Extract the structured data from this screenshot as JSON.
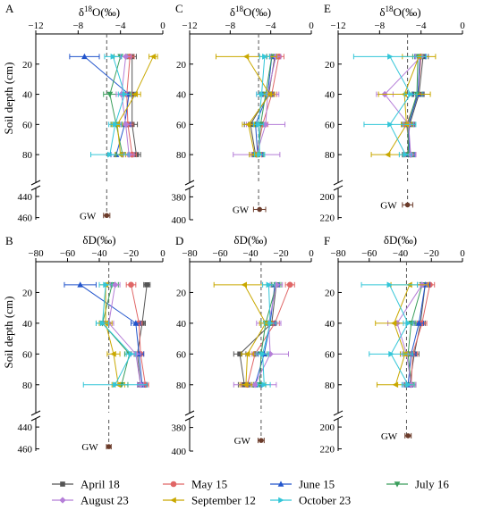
{
  "y_axis_label": "Soil depth (cm)",
  "gw_label": "GW",
  "series_meta": [
    {
      "name": "April 18",
      "color": "#555555",
      "marker": "square"
    },
    {
      "name": "May 15",
      "color": "#e06666",
      "marker": "circle"
    },
    {
      "name": "June 15",
      "color": "#2255cc",
      "marker": "triangle-up"
    },
    {
      "name": "July 16",
      "color": "#3a9e5c",
      "marker": "triangle-down"
    },
    {
      "name": "August 23",
      "color": "#b57ed8",
      "marker": "diamond"
    },
    {
      "name": "September 12",
      "color": "#c9a800",
      "marker": "triangle-left"
    },
    {
      "name": "October 23",
      "color": "#33c6d8",
      "marker": "triangle-right"
    }
  ],
  "chart_data": [
    {
      "type": "line",
      "panel": "A",
      "isotope": "d18O",
      "xlabel_main": "δ",
      "xlabel_sup": "18",
      "xlabel_rest": "O(‰)",
      "xlim": [
        -12,
        0
      ],
      "xticks": [
        "−12",
        "−8",
        "−4",
        "0"
      ],
      "xtick_values": [
        -12,
        -8,
        -4,
        0
      ],
      "depths": [
        15,
        40,
        60,
        80
      ],
      "ylim_upper": [
        0,
        90
      ],
      "yticks_upper": [
        20,
        40,
        60,
        80
      ],
      "ylim_lower": [
        435,
        462
      ],
      "yticks_lower": [
        440,
        460
      ],
      "gw_ref": -5.3,
      "gw": {
        "depth": 458,
        "value": -5.3,
        "err": 0.3
      },
      "series": [
        {
          "values": [
            -2.9,
            -2.9,
            -2.9,
            -2.5
          ],
          "err": [
            0.4,
            0.5,
            0.5,
            0.4
          ]
        },
        {
          "values": [
            -3.1,
            -3.4,
            -3.3,
            -2.9
          ],
          "err": [
            0.4,
            0.5,
            0.5,
            0.4
          ]
        },
        {
          "values": [
            -7.4,
            -3.2,
            -3.6,
            -4.4
          ],
          "err": [
            1.4,
            0.6,
            0.5,
            0.5
          ]
        },
        {
          "values": [
            -4.0,
            -5.0,
            -4.4,
            -3.8
          ],
          "err": [
            0.6,
            0.6,
            0.5,
            0.6
          ]
        },
        {
          "values": [
            -3.5,
            -3.9,
            -3.5,
            -3.2
          ],
          "err": [
            0.5,
            0.5,
            0.5,
            0.5
          ]
        },
        {
          "values": [
            -0.9,
            -2.6,
            -4.3,
            -4.0
          ],
          "err": [
            0.4,
            0.5,
            0.5,
            0.5
          ]
        },
        {
          "values": [
            -4.7,
            -3.6,
            -4.5,
            -5.0
          ],
          "err": [
            0.8,
            0.6,
            0.6,
            1.8
          ]
        }
      ]
    },
    {
      "type": "line",
      "panel": "C",
      "isotope": "d18O",
      "xlabel_main": "δ",
      "xlabel_sup": "18",
      "xlabel_rest": "O(‰)",
      "xlim": [
        -12,
        0
      ],
      "xticks": [
        "−12",
        "−8",
        "−4",
        "0"
      ],
      "xtick_values": [
        -12,
        -8,
        -4,
        0
      ],
      "depths": [
        15,
        40,
        60,
        80
      ],
      "ylim_upper": [
        0,
        90
      ],
      "yticks_upper": [
        20,
        40,
        60,
        80
      ],
      "ylim_lower": [
        375,
        400
      ],
      "yticks_lower": [
        380,
        400
      ],
      "gw_ref": -5.2,
      "gw": {
        "depth": 391,
        "value": -5.1,
        "err": 0.6
      },
      "series": [
        {
          "values": [
            -3.6,
            -4.2,
            -6.0,
            -5.5
          ],
          "err": [
            0.5,
            0.5,
            0.6,
            0.6
          ]
        },
        {
          "values": [
            -3.2,
            -3.9,
            -4.8,
            -5.4
          ],
          "err": [
            0.5,
            0.5,
            0.5,
            0.5
          ]
        },
        {
          "values": [
            -3.9,
            -4.3,
            -5.5,
            -5.3
          ],
          "err": [
            0.5,
            0.5,
            0.5,
            0.5
          ]
        },
        {
          "values": [
            -3.9,
            -4.5,
            -5.0,
            -5.2
          ],
          "err": [
            0.5,
            0.5,
            0.5,
            0.5
          ]
        },
        {
          "values": [
            -3.5,
            -4.3,
            -4.5,
            -5.4
          ],
          "err": [
            0.5,
            1.1,
            1.9,
            2.3
          ]
        },
        {
          "values": [
            -6.4,
            -4.1,
            -6.2,
            -5.6
          ],
          "err": [
            3.0,
            0.5,
            0.6,
            0.5
          ]
        },
        {
          "values": [
            -4.6,
            -4.9,
            -5.2,
            -5.1
          ],
          "err": [
            0.5,
            0.5,
            0.5,
            0.5
          ]
        }
      ]
    },
    {
      "type": "line",
      "panel": "E",
      "isotope": "d18O",
      "xlabel_main": "δ",
      "xlabel_sup": "18",
      "xlabel_rest": "O(‰)",
      "xlim": [
        -12,
        0
      ],
      "xticks": [
        "−12",
        "−8",
        "−4",
        "0"
      ],
      "xtick_values": [
        -12,
        -8,
        -4,
        0
      ],
      "depths": [
        15,
        40,
        60,
        80
      ],
      "ylim_upper": [
        0,
        90
      ],
      "yticks_upper": [
        20,
        40,
        60,
        80
      ],
      "ylim_lower": [
        195,
        222
      ],
      "yticks_lower": [
        200,
        220
      ],
      "gw_ref": -5.3,
      "gw": {
        "depth": 208,
        "value": -5.3,
        "err": 0.5
      },
      "series": [
        {
          "values": [
            -3.8,
            -4.2,
            -5.1,
            -5.3
          ],
          "err": [
            0.5,
            0.5,
            0.5,
            0.5
          ]
        },
        {
          "values": [
            -4.0,
            -4.3,
            -5.4,
            -5.0
          ],
          "err": [
            0.5,
            0.5,
            0.5,
            0.5
          ]
        },
        {
          "values": [
            -4.1,
            -4.3,
            -5.2,
            -5.1
          ],
          "err": [
            0.5,
            0.5,
            0.5,
            0.5
          ]
        },
        {
          "values": [
            -4.3,
            -4.4,
            -5.3,
            -5.2
          ],
          "err": [
            0.5,
            0.5,
            0.5,
            0.5
          ]
        },
        {
          "values": [
            -4.0,
            -7.5,
            -5.2,
            -5.0
          ],
          "err": [
            0.5,
            0.8,
            0.5,
            0.5
          ]
        },
        {
          "values": [
            -4.2,
            -5.6,
            -5.4,
            -7.2
          ],
          "err": [
            1.6,
            2.5,
            0.5,
            1.6
          ]
        },
        {
          "values": [
            -7.0,
            -5.0,
            -7.0,
            -5.5
          ],
          "err": [
            3.5,
            0.6,
            2.5,
            0.6
          ]
        }
      ]
    },
    {
      "type": "line",
      "panel": "B",
      "isotope": "dD",
      "xlabel_main": "δD(‰)",
      "xlabel_sup": "",
      "xlabel_rest": "",
      "xlim": [
        -80,
        0
      ],
      "xticks": [
        "−80",
        "−60",
        "−40",
        "−20",
        "0"
      ],
      "xtick_values": [
        -80,
        -60,
        -40,
        -20,
        0
      ],
      "depths": [
        15,
        40,
        60,
        80
      ],
      "ylim_upper": [
        0,
        90
      ],
      "yticks_upper": [
        20,
        40,
        60,
        80
      ],
      "ylim_lower": [
        435,
        462
      ],
      "yticks_lower": [
        440,
        460
      ],
      "gw_ref": -34,
      "gw": {
        "depth": 458,
        "value": -34,
        "err": 1.5
      },
      "series": [
        {
          "values": [
            -10,
            -13,
            -16,
            -14
          ],
          "err": [
            2,
            2,
            2,
            2
          ]
        },
        {
          "values": [
            -20,
            -15,
            -14,
            -11
          ],
          "err": [
            3,
            2,
            2,
            2
          ]
        },
        {
          "values": [
            -52,
            -17,
            -15,
            -13
          ],
          "err": [
            10,
            3,
            3,
            3
          ]
        },
        {
          "values": [
            -32,
            -38,
            -21,
            -26
          ],
          "err": [
            4,
            4,
            3,
            4
          ]
        },
        {
          "values": [
            -30,
            -34,
            -17,
            -14
          ],
          "err": [
            3,
            3,
            3,
            2
          ]
        },
        {
          "values": [
            -36,
            -36,
            -31,
            -28
          ],
          "err": [
            4,
            4,
            4,
            4
          ]
        },
        {
          "values": [
            -36,
            -38,
            -20,
            -30
          ],
          "err": [
            4,
            4,
            3,
            20
          ]
        }
      ]
    },
    {
      "type": "line",
      "panel": "D",
      "isotope": "dD",
      "xlabel_main": "δD(‰)",
      "xlabel_sup": "",
      "xlabel_rest": "",
      "xlim": [
        -80,
        0
      ],
      "xticks": [
        "−80",
        "−60",
        "−40",
        "−20",
        "0"
      ],
      "xtick_values": [
        -80,
        -60,
        -40,
        -20,
        0
      ],
      "depths": [
        15,
        40,
        60,
        80
      ],
      "ylim_upper": [
        0,
        90
      ],
      "yticks_upper": [
        20,
        40,
        60,
        80
      ],
      "ylim_lower": [
        375,
        400
      ],
      "yticks_lower": [
        380,
        400
      ],
      "gw_ref": -33,
      "gw": {
        "depth": 391,
        "value": -33,
        "err": 2
      },
      "series": [
        {
          "values": [
            -23,
            -26,
            -47,
            -44
          ],
          "err": [
            3,
            3,
            4,
            4
          ]
        },
        {
          "values": [
            -14,
            -24,
            -37,
            -42
          ],
          "err": [
            3,
            3,
            4,
            4
          ]
        },
        {
          "values": [
            -24,
            -27,
            -31,
            -37
          ],
          "err": [
            3,
            3,
            4,
            4
          ]
        },
        {
          "values": [
            -23,
            -30,
            -33,
            -34
          ],
          "err": [
            3,
            3,
            4,
            4
          ]
        },
        {
          "values": [
            -23,
            -28,
            -27,
            -37
          ],
          "err": [
            4,
            8,
            12,
            14
          ]
        },
        {
          "values": [
            -44,
            -30,
            -42,
            -43
          ],
          "err": [
            20,
            4,
            4,
            4
          ]
        },
        {
          "values": [
            -28,
            -27,
            -32,
            -31
          ],
          "err": [
            4,
            4,
            4,
            4
          ]
        }
      ]
    },
    {
      "type": "line",
      "panel": "F",
      "isotope": "dD",
      "xlabel_main": "δD(‰)",
      "xlabel_sup": "",
      "xlabel_rest": "",
      "xlim": [
        -80,
        0
      ],
      "xticks": [
        "−80",
        "−60",
        "−40",
        "−20",
        "0"
      ],
      "xtick_values": [
        -80,
        -60,
        -40,
        -20,
        0
      ],
      "depths": [
        15,
        40,
        60,
        80
      ],
      "ylim_upper": [
        0,
        90
      ],
      "yticks_upper": [
        20,
        40,
        60,
        80
      ],
      "ylim_lower": [
        195,
        222
      ],
      "yticks_lower": [
        200,
        220
      ],
      "gw_ref": -36,
      "gw": {
        "depth": 208,
        "value": -35,
        "err": 2
      },
      "series": [
        {
          "values": [
            -24,
            -27,
            -31,
            -34
          ],
          "err": [
            3,
            3,
            3,
            3
          ]
        },
        {
          "values": [
            -21,
            -26,
            -32,
            -33
          ],
          "err": [
            3,
            3,
            3,
            3
          ]
        },
        {
          "values": [
            -24,
            -28,
            -33,
            -35
          ],
          "err": [
            3,
            3,
            3,
            3
          ]
        },
        {
          "values": [
            -26,
            -33,
            -35,
            -33
          ],
          "err": [
            3,
            3,
            3,
            3
          ]
        },
        {
          "values": [
            -26,
            -42,
            -36,
            -33
          ],
          "err": [
            3,
            6,
            3,
            3
          ]
        },
        {
          "values": [
            -34,
            -44,
            -37,
            -43
          ],
          "err": [
            12,
            12,
            3,
            12
          ]
        },
        {
          "values": [
            -47,
            -35,
            -46,
            -35
          ],
          "err": [
            18,
            3,
            14,
            4
          ]
        }
      ]
    }
  ]
}
